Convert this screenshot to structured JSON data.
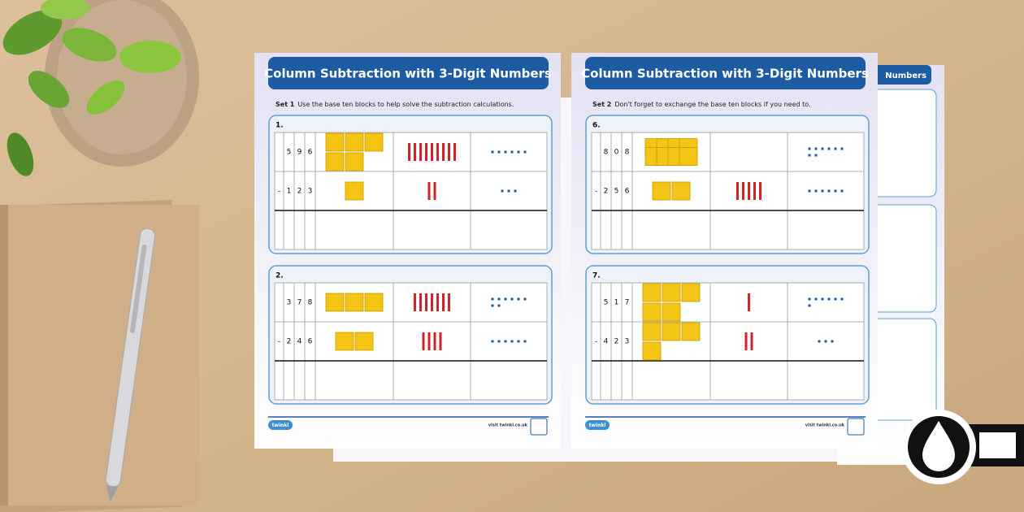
{
  "sheets": [
    {
      "title": "Column Subtraction with 3-Digit Numbers",
      "set_label": "Set 1",
      "instruction": "Use the base ten blocks to help solve the subtraction calculations.",
      "problems": [
        {
          "number": "1.",
          "sign": "-",
          "minuend": [
            5,
            9,
            6
          ],
          "subtrahend": [
            1,
            2,
            3
          ]
        },
        {
          "number": "2.",
          "sign": "-",
          "minuend": [
            3,
            7,
            8
          ],
          "subtrahend": [
            2,
            4,
            6
          ]
        }
      ],
      "logo": "twinkl",
      "footer": "visit twinkl.co.uk"
    },
    {
      "title": "Column Subtraction with 3-Digit Numbers",
      "set_label": "Set 2",
      "instruction": "Don't forget to exchange the base ten blocks if you need to.",
      "problems": [
        {
          "number": "6.",
          "sign": "-",
          "minuend": [
            8,
            0,
            8
          ],
          "subtrahend": [
            2,
            5,
            6
          ]
        },
        {
          "number": "7.",
          "sign": "-",
          "minuend": [
            5,
            1,
            7
          ],
          "subtrahend": [
            4,
            2,
            3
          ]
        }
      ],
      "logo": "twinkl",
      "footer": "visit twinkl.co.uk"
    }
  ],
  "back_sheet": {
    "title": "Numbers"
  }
}
